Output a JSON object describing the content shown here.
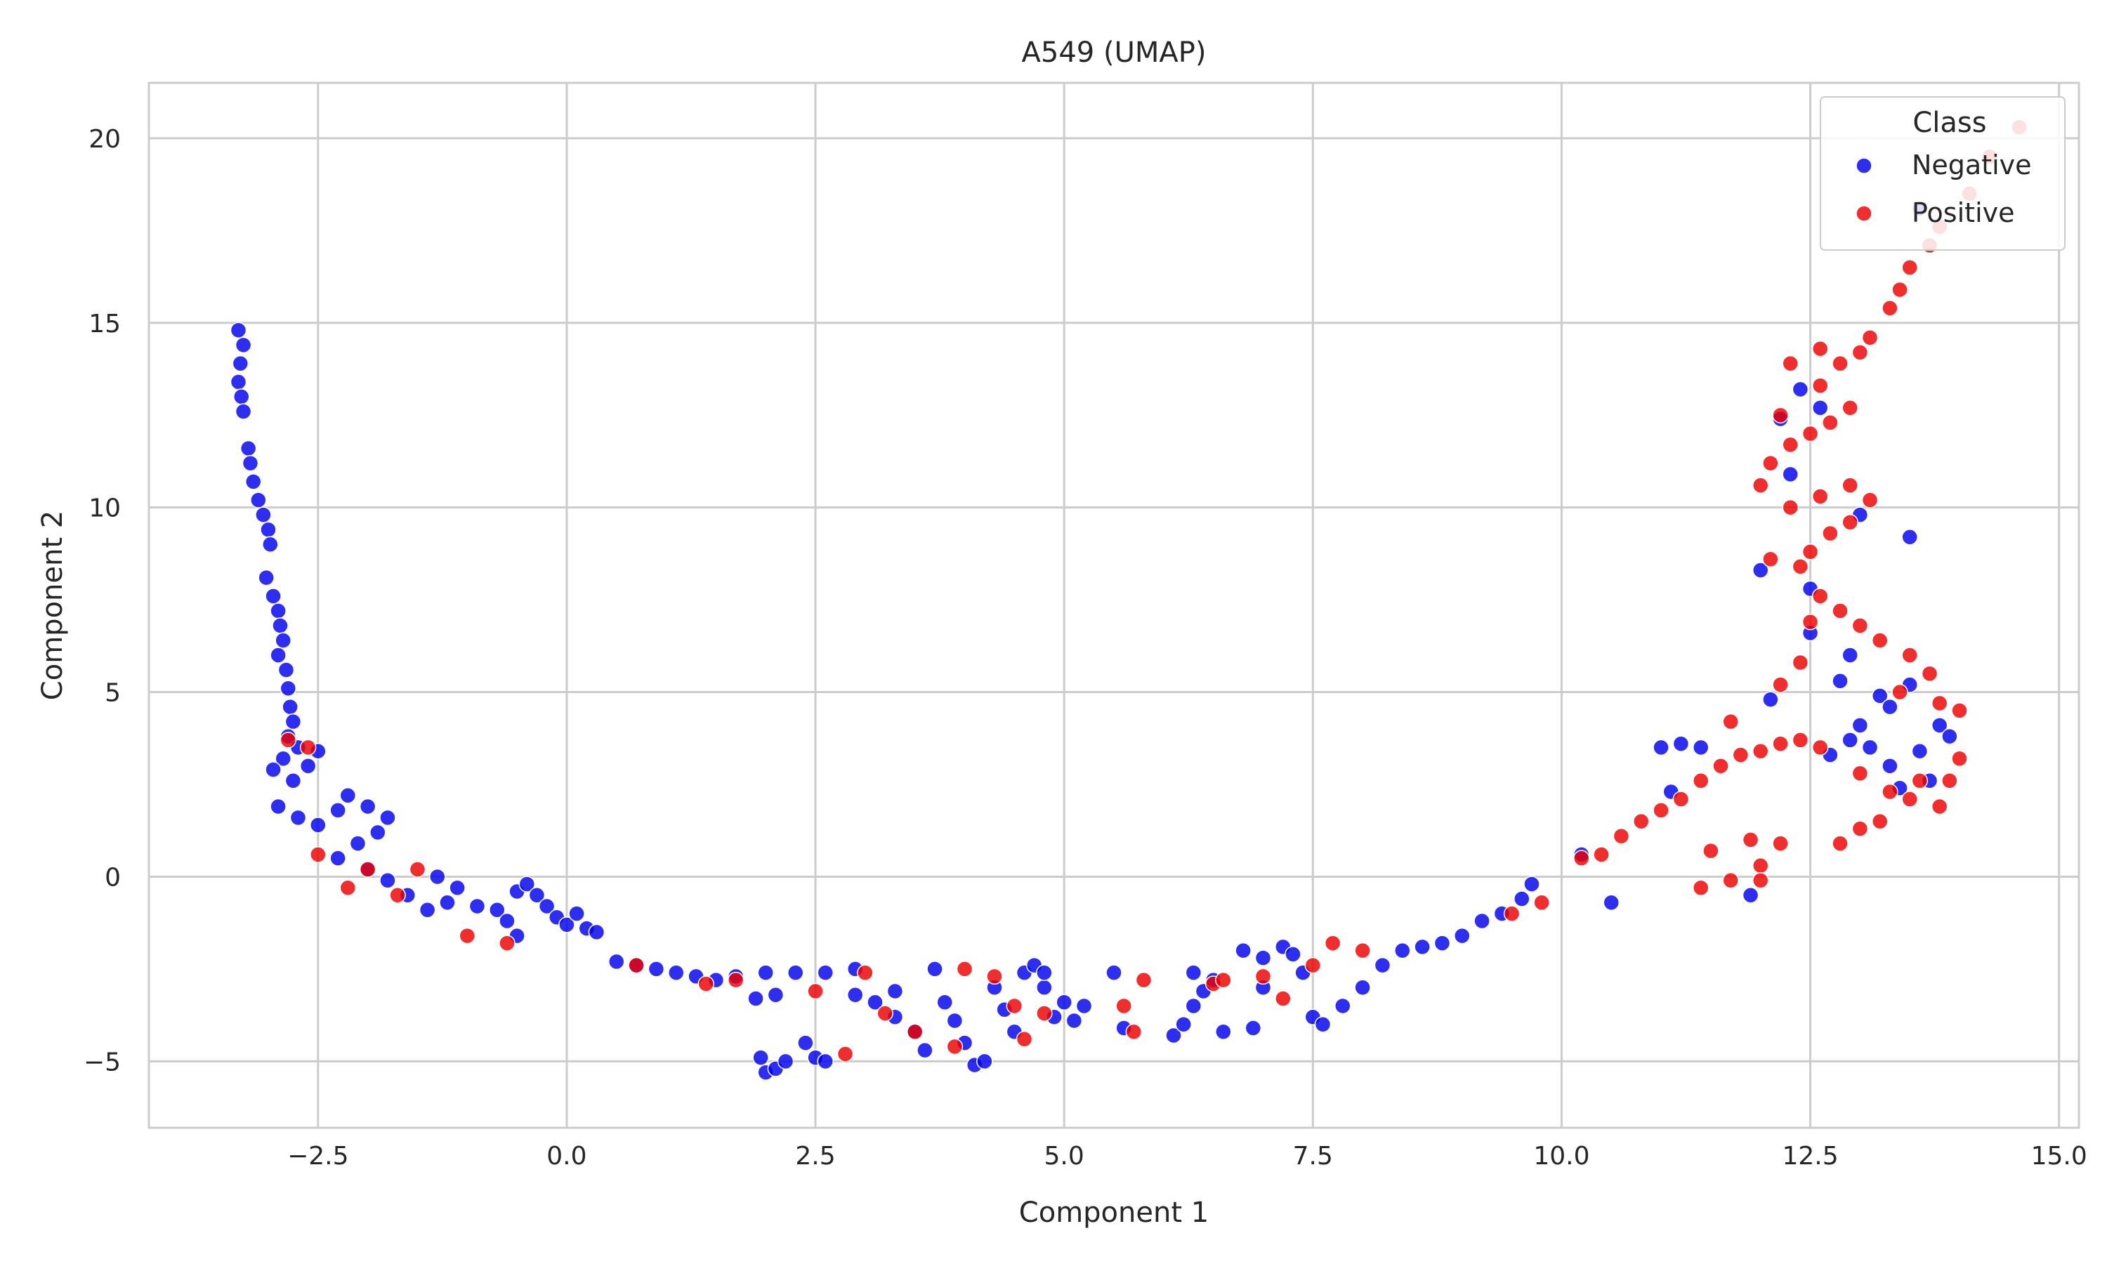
{
  "chart_data": {
    "type": "scatter",
    "title": "A549 (UMAP)",
    "xlabel": "Component 1",
    "ylabel": "Component 2",
    "xlim": [
      -4.2,
      15.2
    ],
    "ylim": [
      -6.8,
      21.5
    ],
    "xticks": [
      -2.5,
      0.0,
      2.5,
      5.0,
      7.5,
      10.0,
      12.5,
      15.0
    ],
    "xtick_labels": [
      "−2.5",
      "0.0",
      "2.5",
      "5.0",
      "7.5",
      "10.0",
      "12.5",
      "15.0"
    ],
    "yticks": [
      -5,
      0,
      5,
      10,
      15,
      20
    ],
    "ytick_labels": [
      "−5",
      "0",
      "5",
      "10",
      "15",
      "20"
    ],
    "grid": true,
    "legend": {
      "title": "Class",
      "position": "top-right"
    },
    "series": [
      {
        "name": "Negative",
        "color": "#0000ee",
        "points": [
          [
            -3.3,
            14.8
          ],
          [
            -3.25,
            14.4
          ],
          [
            -3.28,
            13.9
          ],
          [
            -3.3,
            13.4
          ],
          [
            -3.27,
            13.0
          ],
          [
            -3.25,
            12.6
          ],
          [
            -3.2,
            11.6
          ],
          [
            -3.18,
            11.2
          ],
          [
            -3.15,
            10.7
          ],
          [
            -3.1,
            10.2
          ],
          [
            -3.05,
            9.8
          ],
          [
            -3.0,
            9.4
          ],
          [
            -2.98,
            9.0
          ],
          [
            -3.02,
            8.1
          ],
          [
            -2.95,
            7.6
          ],
          [
            -2.9,
            7.2
          ],
          [
            -2.88,
            6.8
          ],
          [
            -2.85,
            6.4
          ],
          [
            -2.9,
            6.0
          ],
          [
            -2.82,
            5.6
          ],
          [
            -2.8,
            5.1
          ],
          [
            -2.78,
            4.6
          ],
          [
            -2.75,
            4.2
          ],
          [
            -2.8,
            3.8
          ],
          [
            -2.7,
            3.5
          ],
          [
            -2.85,
            3.2
          ],
          [
            -2.95,
            2.9
          ],
          [
            -2.75,
            2.6
          ],
          [
            -2.6,
            3.0
          ],
          [
            -2.5,
            3.4
          ],
          [
            -2.9,
            1.9
          ],
          [
            -2.7,
            1.6
          ],
          [
            -2.5,
            1.4
          ],
          [
            -2.3,
            1.8
          ],
          [
            -2.2,
            2.2
          ],
          [
            -2.0,
            1.9
          ],
          [
            -1.8,
            1.6
          ],
          [
            -1.9,
            1.2
          ],
          [
            -2.1,
            0.9
          ],
          [
            -2.3,
            0.5
          ],
          [
            -2.0,
            0.2
          ],
          [
            -1.8,
            -0.1
          ],
          [
            -1.6,
            -0.5
          ],
          [
            -1.4,
            -0.9
          ],
          [
            -1.2,
            -0.7
          ],
          [
            -1.1,
            -0.3
          ],
          [
            -1.3,
            0.0
          ],
          [
            -0.9,
            -0.8
          ],
          [
            -0.7,
            -0.9
          ],
          [
            -0.6,
            -1.2
          ],
          [
            -0.5,
            -0.4
          ],
          [
            -0.4,
            -0.2
          ],
          [
            -0.3,
            -0.5
          ],
          [
            -0.2,
            -0.8
          ],
          [
            -0.1,
            -1.1
          ],
          [
            0.0,
            -1.3
          ],
          [
            0.1,
            -1.0
          ],
          [
            0.2,
            -1.4
          ],
          [
            0.3,
            -1.5
          ],
          [
            -0.5,
            -1.6
          ],
          [
            0.5,
            -2.3
          ],
          [
            0.7,
            -2.4
          ],
          [
            0.9,
            -2.5
          ],
          [
            1.1,
            -2.6
          ],
          [
            1.3,
            -2.7
          ],
          [
            1.5,
            -2.8
          ],
          [
            1.7,
            -2.7
          ],
          [
            1.9,
            -3.3
          ],
          [
            2.1,
            -3.2
          ],
          [
            2.0,
            -2.6
          ],
          [
            1.95,
            -4.9
          ],
          [
            2.0,
            -5.3
          ],
          [
            2.1,
            -5.2
          ],
          [
            2.2,
            -5.0
          ],
          [
            2.4,
            -4.5
          ],
          [
            2.5,
            -4.9
          ],
          [
            2.6,
            -5.0
          ],
          [
            2.3,
            -2.6
          ],
          [
            2.6,
            -2.6
          ],
          [
            2.9,
            -2.5
          ],
          [
            2.9,
            -3.2
          ],
          [
            3.1,
            -3.4
          ],
          [
            3.3,
            -3.1
          ],
          [
            3.3,
            -3.8
          ],
          [
            3.5,
            -4.2
          ],
          [
            3.6,
            -4.7
          ],
          [
            3.7,
            -2.5
          ],
          [
            3.8,
            -3.4
          ],
          [
            3.9,
            -3.9
          ],
          [
            4.0,
            -4.5
          ],
          [
            4.1,
            -5.1
          ],
          [
            4.2,
            -5.0
          ],
          [
            4.3,
            -3.0
          ],
          [
            4.4,
            -3.6
          ],
          [
            4.5,
            -4.2
          ],
          [
            4.6,
            -2.6
          ],
          [
            4.7,
            -2.4
          ],
          [
            4.8,
            -3.0
          ],
          [
            4.9,
            -3.8
          ],
          [
            5.0,
            -3.4
          ],
          [
            5.1,
            -3.9
          ],
          [
            5.2,
            -3.5
          ],
          [
            4.8,
            -2.6
          ],
          [
            5.5,
            -2.6
          ],
          [
            5.6,
            -4.1
          ],
          [
            6.1,
            -4.3
          ],
          [
            6.2,
            -4.0
          ],
          [
            6.3,
            -3.5
          ],
          [
            6.4,
            -3.1
          ],
          [
            6.5,
            -2.8
          ],
          [
            6.3,
            -2.6
          ],
          [
            6.6,
            -4.2
          ],
          [
            6.9,
            -4.1
          ],
          [
            6.8,
            -2.0
          ],
          [
            7.0,
            -2.2
          ],
          [
            7.2,
            -1.9
          ],
          [
            7.3,
            -2.1
          ],
          [
            7.0,
            -3.0
          ],
          [
            7.5,
            -3.8
          ],
          [
            7.6,
            -4.0
          ],
          [
            7.4,
            -2.6
          ],
          [
            7.8,
            -3.5
          ],
          [
            8.0,
            -3.0
          ],
          [
            8.2,
            -2.4
          ],
          [
            8.4,
            -2.0
          ],
          [
            8.6,
            -1.9
          ],
          [
            8.8,
            -1.8
          ],
          [
            9.0,
            -1.6
          ],
          [
            9.2,
            -1.2
          ],
          [
            9.4,
            -1.0
          ],
          [
            9.6,
            -0.6
          ],
          [
            9.7,
            -0.2
          ],
          [
            10.2,
            0.6
          ],
          [
            10.5,
            -0.7
          ],
          [
            11.0,
            3.5
          ],
          [
            11.1,
            2.3
          ],
          [
            11.2,
            3.6
          ],
          [
            11.4,
            3.5
          ],
          [
            11.9,
            -0.5
          ],
          [
            12.0,
            8.3
          ],
          [
            12.1,
            4.8
          ],
          [
            12.2,
            12.4
          ],
          [
            12.3,
            10.9
          ],
          [
            12.4,
            13.2
          ],
          [
            12.5,
            7.8
          ],
          [
            12.6,
            12.7
          ],
          [
            12.7,
            3.3
          ],
          [
            12.8,
            5.3
          ],
          [
            12.9,
            3.7
          ],
          [
            13.0,
            4.1
          ],
          [
            13.1,
            3.5
          ],
          [
            13.2,
            4.9
          ],
          [
            13.3,
            3.0
          ],
          [
            13.4,
            2.4
          ],
          [
            13.5,
            5.2
          ],
          [
            13.6,
            3.4
          ],
          [
            13.7,
            2.6
          ],
          [
            13.8,
            4.1
          ],
          [
            13.9,
            3.8
          ],
          [
            13.6,
            18.1
          ],
          [
            13.5,
            9.2
          ],
          [
            12.9,
            6.0
          ],
          [
            13.0,
            9.8
          ],
          [
            12.5,
            6.6
          ],
          [
            13.3,
            4.6
          ]
        ]
      },
      {
        "name": "Positive",
        "color": "#ee0000",
        "points": [
          [
            -2.8,
            3.7
          ],
          [
            -2.6,
            3.5
          ],
          [
            -2.5,
            0.6
          ],
          [
            -2.2,
            -0.3
          ],
          [
            -2.0,
            0.2
          ],
          [
            -1.7,
            -0.5
          ],
          [
            -1.5,
            0.2
          ],
          [
            -1.0,
            -1.6
          ],
          [
            -0.6,
            -1.8
          ],
          [
            0.7,
            -2.4
          ],
          [
            1.4,
            -2.9
          ],
          [
            1.7,
            -2.8
          ],
          [
            2.5,
            -3.1
          ],
          [
            2.8,
            -4.8
          ],
          [
            3.0,
            -2.6
          ],
          [
            3.2,
            -3.7
          ],
          [
            3.5,
            -4.2
          ],
          [
            3.9,
            -4.6
          ],
          [
            4.0,
            -2.5
          ],
          [
            4.3,
            -2.7
          ],
          [
            4.5,
            -3.5
          ],
          [
            4.6,
            -4.4
          ],
          [
            4.8,
            -3.7
          ],
          [
            5.6,
            -3.5
          ],
          [
            5.8,
            -2.8
          ],
          [
            5.7,
            -4.2
          ],
          [
            6.5,
            -2.9
          ],
          [
            6.6,
            -2.8
          ],
          [
            7.0,
            -2.7
          ],
          [
            7.2,
            -3.3
          ],
          [
            7.5,
            -2.4
          ],
          [
            7.7,
            -1.8
          ],
          [
            8.0,
            -2.0
          ],
          [
            9.5,
            -1.0
          ],
          [
            9.8,
            -0.7
          ],
          [
            10.2,
            0.5
          ],
          [
            10.4,
            0.6
          ],
          [
            10.6,
            1.1
          ],
          [
            10.8,
            1.5
          ],
          [
            11.0,
            1.8
          ],
          [
            11.2,
            2.1
          ],
          [
            11.4,
            2.6
          ],
          [
            11.6,
            3.0
          ],
          [
            11.8,
            3.3
          ],
          [
            12.0,
            3.4
          ],
          [
            12.2,
            3.6
          ],
          [
            12.4,
            3.7
          ],
          [
            12.6,
            3.5
          ],
          [
            11.7,
            4.2
          ],
          [
            11.9,
            1.0
          ],
          [
            12.0,
            0.3
          ],
          [
            12.2,
            0.9
          ],
          [
            11.5,
            0.7
          ],
          [
            11.4,
            -0.3
          ],
          [
            11.7,
            -0.1
          ],
          [
            12.0,
            -0.1
          ],
          [
            12.8,
            0.9
          ],
          [
            13.0,
            1.3
          ],
          [
            13.2,
            1.5
          ],
          [
            13.5,
            2.1
          ],
          [
            13.8,
            1.9
          ],
          [
            13.9,
            2.6
          ],
          [
            14.0,
            3.2
          ],
          [
            14.0,
            4.5
          ],
          [
            13.8,
            4.7
          ],
          [
            13.7,
            5.5
          ],
          [
            13.5,
            6.0
          ],
          [
            13.2,
            6.4
          ],
          [
            13.0,
            6.8
          ],
          [
            12.8,
            7.2
          ],
          [
            12.6,
            7.6
          ],
          [
            12.4,
            8.4
          ],
          [
            12.1,
            8.6
          ],
          [
            12.5,
            8.8
          ],
          [
            12.7,
            9.3
          ],
          [
            12.9,
            9.6
          ],
          [
            13.1,
            10.2
          ],
          [
            12.9,
            10.6
          ],
          [
            12.6,
            10.3
          ],
          [
            12.3,
            10.0
          ],
          [
            12.0,
            10.6
          ],
          [
            12.1,
            11.2
          ],
          [
            12.3,
            11.7
          ],
          [
            12.5,
            12.0
          ],
          [
            12.7,
            12.3
          ],
          [
            12.9,
            12.7
          ],
          [
            12.6,
            13.3
          ],
          [
            12.8,
            13.9
          ],
          [
            13.0,
            14.2
          ],
          [
            12.6,
            14.3
          ],
          [
            12.3,
            13.9
          ],
          [
            13.1,
            14.6
          ],
          [
            13.3,
            15.4
          ],
          [
            13.4,
            15.9
          ],
          [
            13.5,
            16.5
          ],
          [
            13.7,
            17.1
          ],
          [
            13.8,
            17.6
          ],
          [
            14.1,
            18.5
          ],
          [
            14.3,
            19.5
          ],
          [
            14.6,
            20.3
          ],
          [
            12.4,
            5.8
          ],
          [
            12.2,
            5.2
          ],
          [
            13.4,
            5.0
          ],
          [
            13.6,
            2.6
          ],
          [
            13.3,
            2.3
          ],
          [
            13.0,
            2.8
          ],
          [
            12.2,
            12.5
          ],
          [
            12.5,
            6.9
          ]
        ]
      }
    ]
  }
}
